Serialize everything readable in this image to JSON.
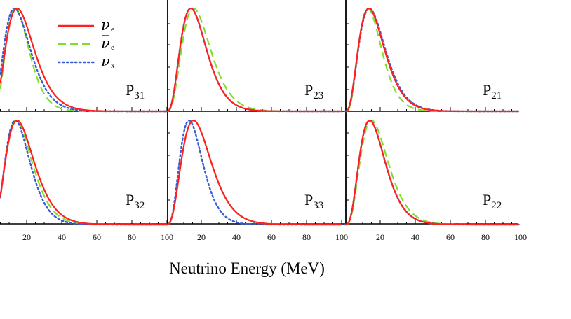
{
  "chart_data": {
    "type": "line",
    "xlabel": "Neutrino Energy (MeV)",
    "xlim": [
      0,
      100
    ],
    "x_ticks": [
      20,
      40,
      60,
      80,
      100
    ],
    "x_tick_labels": [
      "20",
      "40",
      "60",
      "80",
      "100"
    ],
    "grid": false,
    "legend": {
      "placement": "top-left panel",
      "entries": [
        {
          "key": "nu_e",
          "symbol": "ν",
          "bar": false,
          "subscript": "e",
          "color": "#ff2020",
          "dash": "solid"
        },
        {
          "key": "nubar_e",
          "symbol": "ν",
          "bar": true,
          "subscript": "e",
          "color": "#7ee02a",
          "dash": "dashed"
        },
        {
          "key": "nu_x",
          "symbol": "ν",
          "bar": false,
          "subscript": "x",
          "color": "#3a5bd9",
          "dash": "dotted"
        }
      ]
    },
    "series_style": {
      "nu_e": {
        "color": "#ff2020",
        "dash": "solid"
      },
      "nubar_e": {
        "color": "#7ee02a",
        "dash": "dashed"
      },
      "nu_x": {
        "color": "#3a5bd9",
        "dash": "dotted"
      }
    },
    "panels": [
      {
        "name": "P31",
        "label_main": "P",
        "label_sub": "31",
        "row": 0,
        "col": 0,
        "series": {
          "nu_e": {
            "peak": 14.5,
            "k": 3.2
          },
          "nubar_e": {
            "peak": 13.5,
            "k": 4.2
          },
          "nu_x": {
            "peak": 13.0,
            "k": 3.0
          }
        }
      },
      {
        "name": "P23",
        "label_main": "P",
        "label_sub": "23",
        "row": 0,
        "col": 1,
        "series": {
          "nu_e": {
            "peak": 14.0,
            "k": 3.5
          },
          "nubar_e": {
            "peak": 15.5,
            "k": 3.6
          },
          "nu_x": {
            "peak": 14.0,
            "k": 3.5
          }
        }
      },
      {
        "name": "P21",
        "label_main": "P",
        "label_sub": "21",
        "row": 0,
        "col": 2,
        "series": {
          "nu_e": {
            "peak": 13.5,
            "k": 3.3
          },
          "nubar_e": {
            "peak": 13.0,
            "k": 3.9
          },
          "nu_x": {
            "peak": 13.8,
            "k": 3.3
          }
        }
      },
      {
        "name": "P32",
        "label_main": "P",
        "label_sub": "32",
        "row": 1,
        "col": 0,
        "series": {
          "nu_e": {
            "peak": 14.5,
            "k": 3.2
          },
          "nubar_e": {
            "peak": 14.0,
            "k": 3.4
          },
          "nu_x": {
            "peak": 13.5,
            "k": 3.7
          }
        }
      },
      {
        "name": "P33",
        "label_main": "P",
        "label_sub": "33",
        "row": 1,
        "col": 1,
        "series": {
          "nu_e": {
            "peak": 15.5,
            "k": 3.4
          },
          "nubar_e": {
            "peak": 15.5,
            "k": 3.4
          },
          "nu_x": {
            "peak": 13.0,
            "k": 4.0
          }
        }
      },
      {
        "name": "P22",
        "label_main": "P",
        "label_sub": "22",
        "row": 1,
        "col": 2,
        "series": {
          "nu_e": {
            "peak": 14.0,
            "k": 3.6
          },
          "nubar_e": {
            "peak": 15.0,
            "k": 3.6
          },
          "nu_x": {
            "peak": 14.0,
            "k": 3.6
          }
        }
      }
    ]
  }
}
